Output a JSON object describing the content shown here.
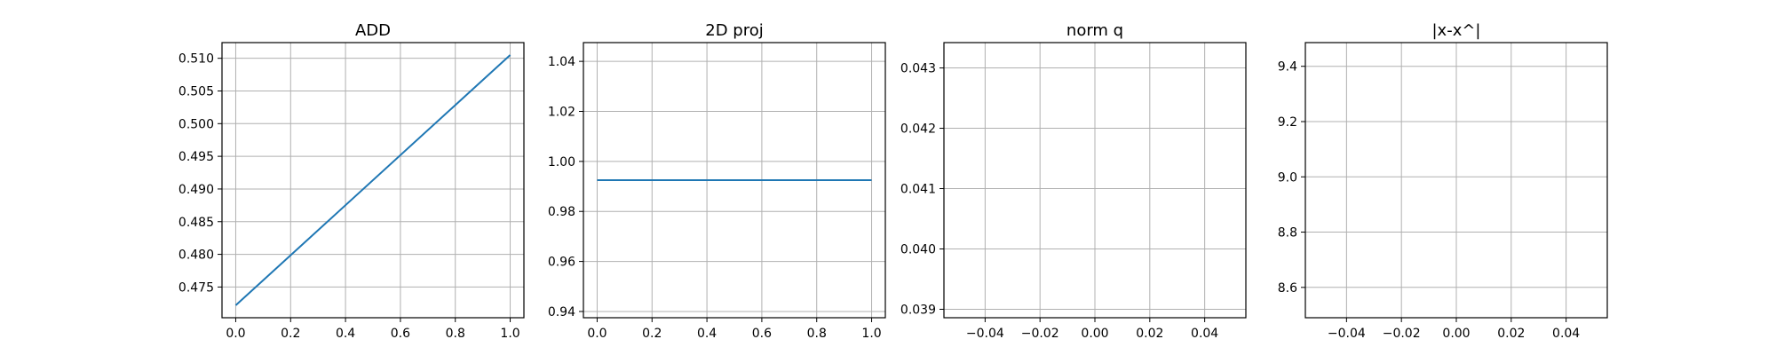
{
  "chart_data": [
    {
      "type": "line",
      "title": "ADD",
      "xlabel": "",
      "ylabel": "",
      "x": [
        0.0,
        1.0
      ],
      "series": [
        {
          "values": [
            0.4722,
            0.5105
          ]
        }
      ],
      "xlim": [
        -0.05,
        1.05
      ],
      "ylim": [
        0.4703,
        0.5124
      ],
      "xticks": [
        0.0,
        0.2,
        0.4,
        0.6,
        0.8,
        1.0
      ],
      "xtick_labels": [
        "0.0",
        "0.2",
        "0.4",
        "0.6",
        "0.8",
        "1.0"
      ],
      "yticks": [
        0.475,
        0.48,
        0.485,
        0.49,
        0.495,
        0.5,
        0.505,
        0.51
      ],
      "ytick_labels": [
        "0.475",
        "0.480",
        "0.485",
        "0.490",
        "0.495",
        "0.500",
        "0.505",
        "0.510"
      ],
      "grid": true,
      "color": "#1f77b4"
    },
    {
      "type": "line",
      "title": "2D proj",
      "xlabel": "",
      "ylabel": "",
      "x": [
        0.0,
        1.0
      ],
      "series": [
        {
          "values": [
            0.9925,
            0.9925
          ]
        }
      ],
      "xlim": [
        -0.05,
        1.05
      ],
      "ylim": [
        0.9375,
        1.0475
      ],
      "xticks": [
        0.0,
        0.2,
        0.4,
        0.6,
        0.8,
        1.0
      ],
      "xtick_labels": [
        "0.0",
        "0.2",
        "0.4",
        "0.6",
        "0.8",
        "1.0"
      ],
      "yticks": [
        0.94,
        0.96,
        0.98,
        1.0,
        1.02,
        1.04
      ],
      "ytick_labels": [
        "0.94",
        "0.96",
        "0.98",
        "1.00",
        "1.02",
        "1.04"
      ],
      "grid": true,
      "color": "#1f77b4"
    },
    {
      "type": "line",
      "title": "norm q",
      "xlabel": "",
      "ylabel": "",
      "x": [],
      "series": [],
      "xlim": [
        -0.055,
        0.055
      ],
      "ylim": [
        0.03886,
        0.04342
      ],
      "xticks": [
        -0.04,
        -0.02,
        0.0,
        0.02,
        0.04
      ],
      "xtick_labels": [
        "−0.04",
        "−0.02",
        "0.00",
        "0.02",
        "0.04"
      ],
      "yticks": [
        0.039,
        0.04,
        0.041,
        0.042,
        0.043
      ],
      "ytick_labels": [
        "0.039",
        "0.040",
        "0.041",
        "0.042",
        "0.043"
      ],
      "grid": true,
      "color": "#1f77b4"
    },
    {
      "type": "line",
      "title": "|x-x^|",
      "xlabel": "",
      "ylabel": "",
      "x": [],
      "series": [],
      "xlim": [
        -0.055,
        0.055
      ],
      "ylim": [
        8.4902,
        9.4858
      ],
      "xticks": [
        -0.04,
        -0.02,
        0.0,
        0.02,
        0.04
      ],
      "xtick_labels": [
        "−0.04",
        "−0.02",
        "0.00",
        "0.02",
        "0.04"
      ],
      "yticks": [
        8.6,
        8.8,
        9.0,
        9.2,
        9.4
      ],
      "ytick_labels": [
        "8.6",
        "8.8",
        "9.0",
        "9.2",
        "9.4"
      ],
      "grid": true,
      "color": "#1f77b4"
    }
  ]
}
